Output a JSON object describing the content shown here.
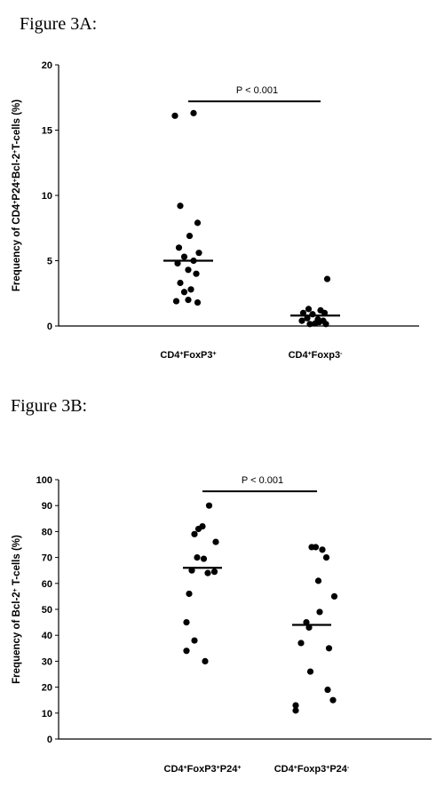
{
  "figure_a": {
    "title": "Figure 3A:"
  },
  "figure_b": {
    "title": "Figure 3B:"
  },
  "colors": {
    "ink": "#000000",
    "background": "#ffffff"
  },
  "chart_data": [
    {
      "type": "scatter",
      "panel": "Figure 3A",
      "ylabel_parts": [
        {
          "t": "Frequency of CD4"
        },
        {
          "t": "+",
          "sup": true
        },
        {
          "t": "P24"
        },
        {
          "t": "+",
          "sup": true
        },
        {
          "t": "Bcl-2"
        },
        {
          "t": "+",
          "sup": true
        },
        {
          "t": "T-cells (%)"
        }
      ],
      "ylim": [
        0,
        20
      ],
      "yticks": [
        0,
        5,
        10,
        15,
        20
      ],
      "categories": [
        {
          "parts": [
            {
              "t": "CD4"
            },
            {
              "t": "+",
              "sup": true
            },
            {
              "t": "FoxP3"
            },
            {
              "t": "+",
              "sup": true
            }
          ]
        },
        {
          "parts": [
            {
              "t": "CD4"
            },
            {
              "t": "+",
              "sup": true
            },
            {
              "t": "Foxp3"
            },
            {
              "t": "-",
              "sup": true
            }
          ]
        }
      ],
      "groups": [
        {
          "median": 5.0,
          "points": [
            [
              -0.1,
              16.1
            ],
            [
              0.04,
              16.3
            ],
            [
              -0.06,
              9.2
            ],
            [
              0.07,
              7.9
            ],
            [
              0.01,
              6.9
            ],
            [
              -0.07,
              6.0
            ],
            [
              0.08,
              5.6
            ],
            [
              -0.03,
              5.3
            ],
            [
              0.04,
              5.0
            ],
            [
              -0.08,
              4.8
            ],
            [
              0.0,
              4.3
            ],
            [
              0.06,
              4.0
            ],
            [
              -0.06,
              3.3
            ],
            [
              0.02,
              2.8
            ],
            [
              -0.03,
              2.6
            ],
            [
              -0.09,
              1.9
            ],
            [
              0.0,
              2.0
            ],
            [
              0.07,
              1.8
            ]
          ]
        },
        {
          "median": 0.8,
          "points": [
            [
              0.09,
              3.6
            ],
            [
              -0.05,
              1.3
            ],
            [
              0.04,
              1.2
            ],
            [
              -0.09,
              1.0
            ],
            [
              -0.02,
              0.9
            ],
            [
              0.07,
              1.0
            ],
            [
              -0.06,
              0.6
            ],
            [
              0.02,
              0.5
            ],
            [
              0.06,
              0.4
            ],
            [
              -0.1,
              0.4
            ],
            [
              0.0,
              0.2
            ],
            [
              0.08,
              0.15
            ],
            [
              -0.04,
              0.15
            ],
            [
              0.03,
              0.3
            ]
          ]
        }
      ],
      "significance": {
        "label": "P < 0.001",
        "y": 17.2
      }
    },
    {
      "type": "scatter",
      "panel": "Figure 3B",
      "ylabel_parts": [
        {
          "t": "Frequency of Bcl-2"
        },
        {
          "t": "+",
          "sup": true
        },
        {
          "t": " T-cells (%)"
        }
      ],
      "ylim": [
        0,
        100
      ],
      "yticks": [
        0,
        10,
        20,
        30,
        40,
        50,
        60,
        70,
        80,
        90,
        100
      ],
      "categories": [
        {
          "parts": [
            {
              "t": "CD4"
            },
            {
              "t": "+",
              "sup": true
            },
            {
              "t": "FoxP3"
            },
            {
              "t": "+",
              "sup": true
            },
            {
              "t": "P24"
            },
            {
              "t": "+",
              "sup": true
            }
          ]
        },
        {
          "parts": [
            {
              "t": "CD4"
            },
            {
              "t": "+",
              "sup": true
            },
            {
              "t": "Foxp3"
            },
            {
              "t": "+",
              "sup": true
            },
            {
              "t": "P24"
            },
            {
              "t": "-",
              "sup": true
            }
          ]
        }
      ],
      "groups": [
        {
          "median": 66,
          "points": [
            [
              0.05,
              90
            ],
            [
              0.0,
              82
            ],
            [
              -0.03,
              81
            ],
            [
              -0.06,
              79
            ],
            [
              0.1,
              76
            ],
            [
              -0.04,
              70
            ],
            [
              0.01,
              69.5
            ],
            [
              -0.08,
              65
            ],
            [
              0.04,
              64
            ],
            [
              0.09,
              64.5
            ],
            [
              -0.1,
              56
            ],
            [
              -0.12,
              45
            ],
            [
              -0.06,
              38
            ],
            [
              -0.12,
              34
            ],
            [
              0.02,
              30
            ]
          ]
        },
        {
          "median": 44,
          "points": [
            [
              0.0,
              74
            ],
            [
              0.03,
              74
            ],
            [
              0.08,
              73
            ],
            [
              0.11,
              70
            ],
            [
              0.05,
              61
            ],
            [
              0.17,
              55
            ],
            [
              0.06,
              49
            ],
            [
              -0.04,
              45
            ],
            [
              -0.02,
              43
            ],
            [
              -0.08,
              37
            ],
            [
              0.13,
              35
            ],
            [
              -0.01,
              26
            ],
            [
              0.12,
              19
            ],
            [
              0.16,
              15
            ],
            [
              -0.12,
              13
            ],
            [
              -0.12,
              11
            ]
          ]
        }
      ],
      "significance": {
        "label": "P < 0.001",
        "y": 95.5
      }
    }
  ]
}
